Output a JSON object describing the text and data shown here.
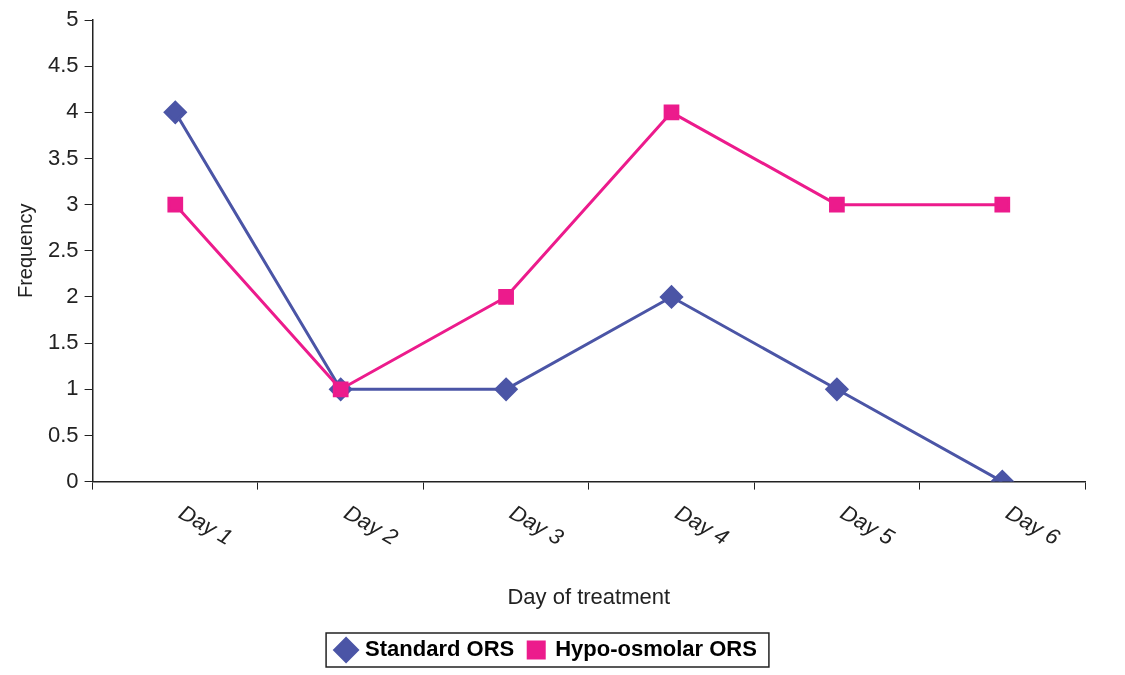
{
  "chart_data": {
    "type": "line",
    "xlabel": "Day of treatment",
    "ylabel": "Frequency",
    "categories": [
      "Day 1",
      "Day 2",
      "Day 3",
      "Day 4",
      "Day 5",
      "Day 6"
    ],
    "series": [
      {
        "name": "Standard ORS",
        "color": "#4b55a6",
        "marker": "diamond",
        "values": [
          4,
          1,
          1,
          2,
          1,
          0
        ]
      },
      {
        "name": "Hypo-osmolar ORS",
        "color": "#ec1b8c",
        "marker": "square",
        "values": [
          3,
          1,
          2,
          4,
          3,
          3
        ]
      }
    ],
    "ylim": [
      0,
      5
    ],
    "yticks": [
      0,
      0.5,
      1,
      1.5,
      2,
      2.5,
      3,
      3.5,
      4,
      4.5,
      5
    ],
    "grid": false,
    "legend": "bottom"
  }
}
